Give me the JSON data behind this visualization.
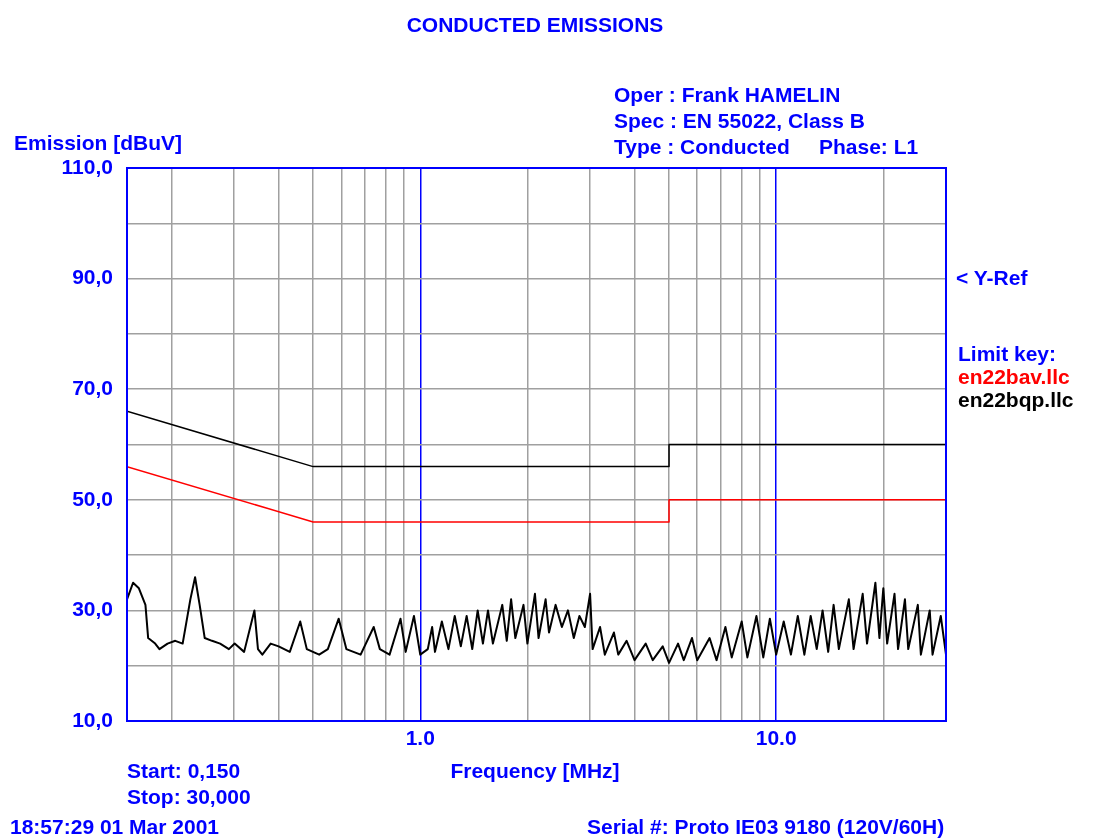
{
  "chart_data": {
    "type": "line",
    "title": "CONDUCTED EMISSIONS",
    "xlabel": "Frequency [MHz]",
    "ylabel": "Emission [dBuV]",
    "legend_title": "Limit key:",
    "legend": "right",
    "grid": true,
    "log": "x",
    "marker": "none",
    "line_style": "solid",
    "xlim": [
      0.15,
      30
    ],
    "ylim": [
      10,
      110
    ],
    "xticks": [
      {
        "value": 0.2,
        "label": null
      },
      {
        "value": 0.3,
        "label": null
      },
      {
        "value": 0.4,
        "label": null
      },
      {
        "value": 0.5,
        "label": null
      },
      {
        "value": 0.6,
        "label": null
      },
      {
        "value": 0.7,
        "label": null
      },
      {
        "value": 0.8,
        "label": null
      },
      {
        "value": 0.9,
        "label": null
      },
      {
        "value": 1,
        "label": "1.0"
      },
      {
        "value": 2,
        "label": null
      },
      {
        "value": 3,
        "label": null
      },
      {
        "value": 4,
        "label": null
      },
      {
        "value": 5,
        "label": null
      },
      {
        "value": 6,
        "label": null
      },
      {
        "value": 7,
        "label": null
      },
      {
        "value": 8,
        "label": null
      },
      {
        "value": 9,
        "label": null
      },
      {
        "value": 10,
        "label": "10.0"
      },
      {
        "value": 20,
        "label": null
      }
    ],
    "yticks": [
      {
        "value": 10,
        "label": "10,0"
      },
      {
        "value": 20,
        "label": null
      },
      {
        "value": 30,
        "label": "30,0"
      },
      {
        "value": 40,
        "label": null
      },
      {
        "value": 50,
        "label": "50,0"
      },
      {
        "value": 60,
        "label": null
      },
      {
        "value": 70,
        "label": "70,0"
      },
      {
        "value": 80,
        "label": null
      },
      {
        "value": 90,
        "label": "90,0"
      },
      {
        "value": 100,
        "label": null
      },
      {
        "value": 110,
        "label": "110,0"
      }
    ],
    "annotations": [
      "< Y-Ref",
      "Oper : Frank HAMELIN",
      "Spec : EN 55022, Class B",
      "Type : Conducted     Phase: L1",
      "Start: 0,150",
      "Stop: 30,000",
      "18:57:29 01 Mar 2001",
      "Serial #: Proto IE03 9180 (120V/60H)"
    ],
    "series": [
      {
        "name": "en22bav.llc",
        "color": "#ff0000",
        "x": [
          0.15,
          0.5,
          5,
          5,
          30
        ],
        "values": [
          56,
          46,
          46,
          50,
          50
        ]
      },
      {
        "name": "en22bqp.llc",
        "color": "#000000",
        "x": [
          0.15,
          0.5,
          5,
          5,
          30
        ],
        "values": [
          66,
          56,
          56,
          60,
          60
        ]
      },
      {
        "color": "#000000",
        "x": [
          0.15,
          0.156,
          0.162,
          0.169,
          0.172,
          0.18,
          0.185,
          0.195,
          0.205,
          0.215,
          0.226,
          0.233,
          0.24,
          0.248,
          0.26,
          0.274,
          0.29,
          0.301,
          0.32,
          0.342,
          0.35,
          0.36,
          0.38,
          0.4,
          0.43,
          0.46,
          0.48,
          0.52,
          0.55,
          0.59,
          0.62,
          0.68,
          0.74,
          0.77,
          0.82,
          0.88,
          0.91,
          0.96,
          1.0,
          1.05,
          1.08,
          1.1,
          1.15,
          1.2,
          1.25,
          1.3,
          1.35,
          1.4,
          1.45,
          1.5,
          1.55,
          1.6,
          1.7,
          1.75,
          1.8,
          1.85,
          1.95,
          2.0,
          2.1,
          2.15,
          2.25,
          2.3,
          2.4,
          2.5,
          2.6,
          2.7,
          2.8,
          2.9,
          3.0,
          3.05,
          3.2,
          3.3,
          3.5,
          3.6,
          3.8,
          4.0,
          4.3,
          4.5,
          4.8,
          5.0,
          5.3,
          5.5,
          5.8,
          6.0,
          6.5,
          6.8,
          7.2,
          7.5,
          8.0,
          8.3,
          8.8,
          9.2,
          9.6,
          10,
          10.5,
          11,
          11.5,
          12,
          12.5,
          13,
          13.5,
          14,
          14.5,
          15,
          16,
          16.5,
          17.5,
          18,
          19,
          19.5,
          20,
          20.5,
          21.5,
          22,
          23,
          23.5,
          25,
          25.5,
          27,
          27.5,
          29,
          30
        ],
        "values": [
          32,
          35,
          34,
          31,
          25,
          24,
          23,
          24,
          24.5,
          24,
          32,
          36,
          31,
          25,
          24.5,
          24,
          23,
          24,
          22.5,
          30,
          23,
          22,
          24,
          23.5,
          22.5,
          28,
          23,
          22,
          23,
          28.5,
          23,
          22,
          27,
          23,
          22,
          28.5,
          22.5,
          29,
          22,
          23,
          27,
          22.5,
          28,
          23,
          29,
          23.5,
          29,
          23,
          30,
          24,
          30,
          24,
          31,
          24.5,
          32,
          25,
          31,
          24,
          33,
          25,
          32,
          26,
          31,
          27,
          30,
          25,
          29,
          27,
          33,
          23,
          27,
          22,
          26,
          22,
          24.5,
          21,
          24,
          21,
          23.5,
          20.5,
          24,
          21,
          25,
          21,
          25,
          21,
          27,
          21.5,
          28,
          21.5,
          29,
          21.5,
          28.5,
          22,
          28,
          22,
          29,
          22,
          29,
          23,
          30,
          22.5,
          31,
          23,
          32,
          23,
          33,
          24,
          35,
          25,
          34,
          24,
          33,
          23,
          32,
          23,
          31,
          22,
          30,
          22,
          29,
          22
        ]
      }
    ]
  }
}
